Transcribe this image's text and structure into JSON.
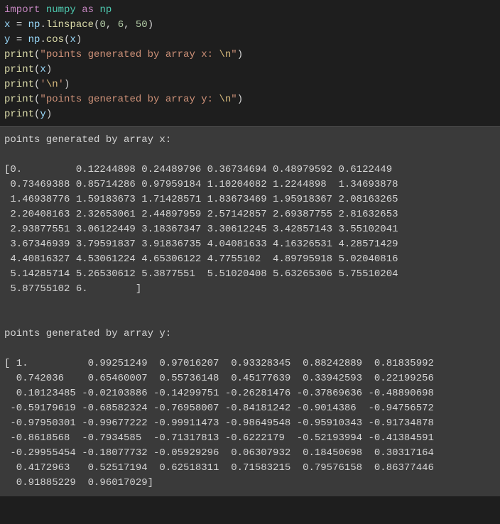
{
  "code": {
    "bg_color": "#1e1e1e",
    "text_color": "#d4d4d4",
    "font_family": "Consolas, 'Courier New', monospace",
    "font_size_pt": 11,
    "line1": {
      "import": "import",
      "mod": "numpy",
      "as": "as",
      "alias": "np"
    },
    "line2": {
      "var": "x",
      "eq": "=",
      "ns": "np",
      "dot": ".",
      "fn": "linspace",
      "lp": "(",
      "a": "0",
      "c1": ",",
      "b": "6",
      "c2": ",",
      "c": "50",
      "rp": ")"
    },
    "line3": {
      "var": "y",
      "eq": "=",
      "ns": "np",
      "dot": ".",
      "fn": "cos",
      "lp": "(",
      "arg": "x",
      "rp": ")"
    },
    "line4": {
      "fn": "print",
      "lp": "(",
      "q1": "\"",
      "txt": "points generated by array x: ",
      "esc": "\\n",
      "q2": "\"",
      "rp": ")"
    },
    "line5": {
      "fn": "print",
      "lp": "(",
      "arg": "x",
      "rp": ")"
    },
    "line6": {
      "fn": "print",
      "lp": "(",
      "q1": "'",
      "esc": "\\n",
      "q2": "'",
      "rp": ")"
    },
    "line7": {
      "fn": "print",
      "lp": "(",
      "q1": "\"",
      "txt": "points generated by array y: ",
      "esc": "\\n",
      "q2": "\"",
      "rp": ")"
    },
    "line8": {
      "fn": "print",
      "lp": "(",
      "arg": "y",
      "rp": ")"
    }
  },
  "output": {
    "bg_color": "#3a3a3a",
    "text_color": "#d4d4d4",
    "header_x": "points generated by array x: ",
    "array_x": "[0.         0.12244898 0.24489796 0.36734694 0.48979592 0.6122449\n 0.73469388 0.85714286 0.97959184 1.10204082 1.2244898  1.34693878\n 1.46938776 1.59183673 1.71428571 1.83673469 1.95918367 2.08163265\n 2.20408163 2.32653061 2.44897959 2.57142857 2.69387755 2.81632653\n 2.93877551 3.06122449 3.18367347 3.30612245 3.42857143 3.55102041\n 3.67346939 3.79591837 3.91836735 4.04081633 4.16326531 4.28571429\n 4.40816327 4.53061224 4.65306122 4.7755102  4.89795918 5.02040816\n 5.14285714 5.26530612 5.3877551  5.51020408 5.63265306 5.75510204\n 5.87755102 6.        ]",
    "header_y": "points generated by array y: ",
    "array_y": "[ 1.          0.99251249  0.97016207  0.93328345  0.88242889  0.81835992\n  0.742036    0.65460007  0.55736148  0.45177639  0.33942593  0.22199256\n  0.10123485 -0.02103886 -0.14299751 -0.26281476 -0.37869636 -0.48890698\n -0.59179619 -0.68582324 -0.76958007 -0.84181242 -0.9014386  -0.94756572\n -0.97950301 -0.99677222 -0.99911473 -0.98649548 -0.95910343 -0.91734878\n -0.8618568  -0.7934585  -0.71317813 -0.6222179  -0.52193994 -0.41384591\n -0.29955454 -0.18077732 -0.05929296  0.06307932  0.18450698  0.30317164\n  0.4172963   0.52517194  0.62518311  0.71583215  0.79576158  0.86377446\n  0.91885229  0.96017029]"
  }
}
